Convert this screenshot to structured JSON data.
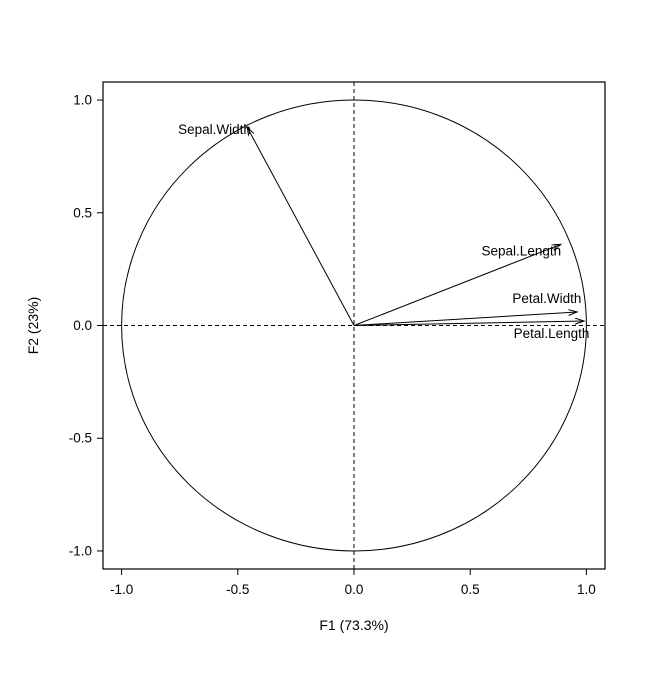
{
  "chart_data": {
    "type": "scatter",
    "subtype": "pca-correlation-circle",
    "title": "",
    "xlabel": "F1 (73.3%)",
    "ylabel": "F2 (23%)",
    "xlim": [
      -1.08,
      1.08
    ],
    "ylim": [
      -1.08,
      1.08
    ],
    "xticks": [
      -1.0,
      -0.5,
      0.0,
      0.5,
      1.0
    ],
    "yticks": [
      -1.0,
      -0.5,
      0.0,
      0.5,
      1.0
    ],
    "xtick_labels": [
      "-1.0",
      "-0.5",
      "0.0",
      "0.5",
      "1.0"
    ],
    "ytick_labels": [
      "-1.0",
      "-0.5",
      "0.0",
      "0.5",
      "1.0"
    ],
    "unit_circle": true,
    "dashed_axes": true,
    "grid": false,
    "legend": null,
    "colors": {
      "stroke": "#000000",
      "background": "#ffffff"
    },
    "vectors": [
      {
        "name": "Sepal.Length",
        "x": 0.89,
        "y": 0.36,
        "label": "Sepal.Length",
        "label_x": 0.72,
        "label_y": 0.33
      },
      {
        "name": "Sepal.Width",
        "x": -0.46,
        "y": 0.88,
        "label": "Sepal.Width",
        "label_x": -0.6,
        "label_y": 0.87
      },
      {
        "name": "Petal.Width",
        "x": 0.96,
        "y": 0.06,
        "label": "Petal.Width",
        "label_x": 0.83,
        "label_y": 0.12
      },
      {
        "name": "Petal.Length",
        "x": 0.99,
        "y": 0.02,
        "label": "Petal.Length",
        "label_x": 0.85,
        "label_y": -0.035
      }
    ]
  }
}
